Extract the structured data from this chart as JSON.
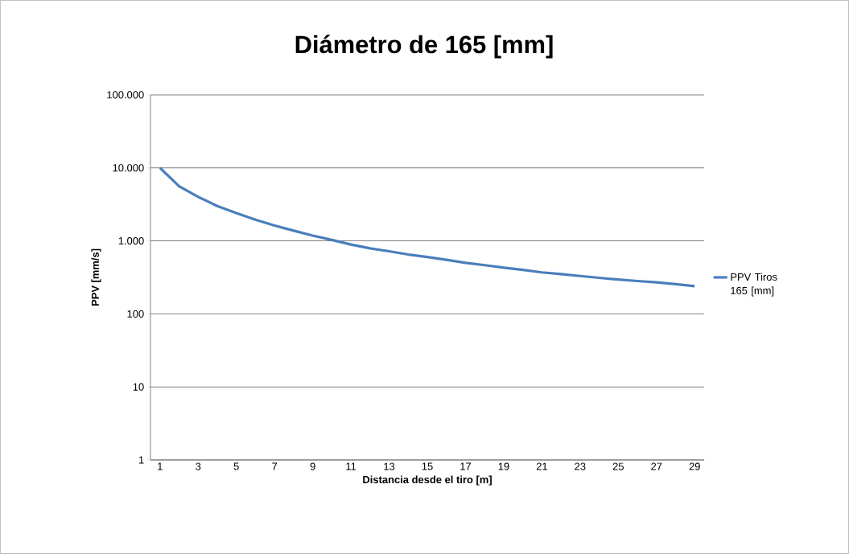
{
  "chart_data": {
    "type": "line",
    "title": "Diámetro de 165 [mm]",
    "xlabel": "Distancia desde el tiro [m]",
    "ylabel": "PPV [mm/s]",
    "categories": [
      "1",
      null,
      "3",
      null,
      "5",
      null,
      "7",
      null,
      "9",
      null,
      "11",
      null,
      "13",
      null,
      "15",
      null,
      "17",
      null,
      "19",
      null,
      "21",
      null,
      "23",
      null,
      "25",
      null,
      "27",
      null,
      "29"
    ],
    "series": [
      {
        "name": "PPV Tiros 165 [mm]",
        "color": "#4a7ebb",
        "values": [
          10000,
          5600,
          4000,
          3000,
          2400,
          1950,
          1620,
          1380,
          1180,
          1030,
          890,
          790,
          720,
          650,
          600,
          550,
          500,
          465,
          430,
          400,
          370,
          350,
          330,
          312,
          295,
          282,
          270,
          255,
          240
        ]
      }
    ],
    "log": true,
    "ylim": [
      1,
      100000
    ],
    "yticks": [
      1,
      10,
      100,
      {
        "value": 1000,
        "label": "1.000"
      },
      {
        "value": 10000,
        "label": "10.000"
      },
      {
        "value": 100000,
        "label": "100.000"
      }
    ],
    "grid": "y",
    "legend": "right",
    "marker": "none",
    "line_style": "solid"
  }
}
